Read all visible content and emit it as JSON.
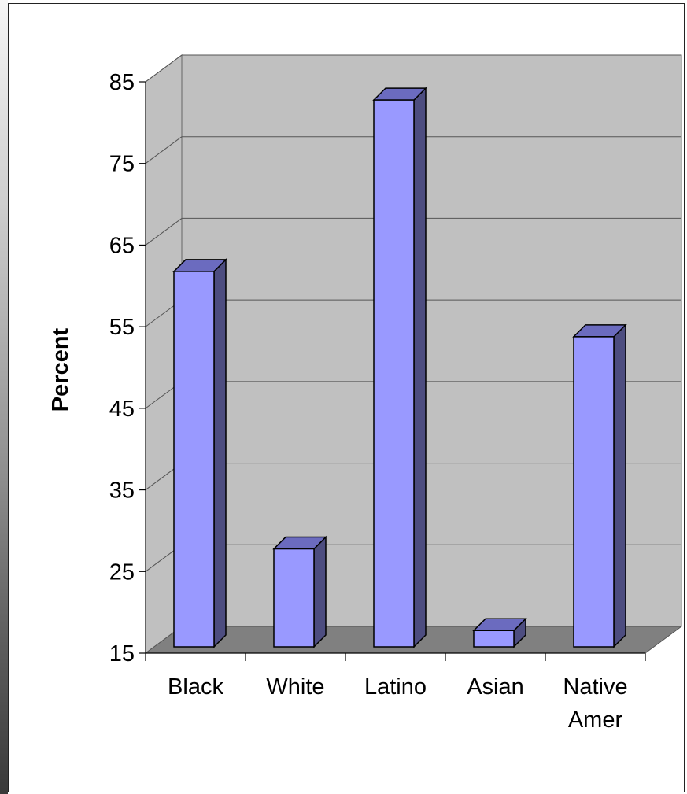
{
  "chart_data": {
    "type": "bar",
    "title": "",
    "xlabel": "",
    "ylabel": "Percent",
    "categories": [
      "Black",
      "White",
      "Latino",
      "Asian",
      "Native Amer"
    ],
    "category_label_lines": [
      [
        "Black"
      ],
      [
        "White"
      ],
      [
        "Latino"
      ],
      [
        "Asian"
      ],
      [
        "Native",
        "Amer"
      ]
    ],
    "values": [
      61,
      27,
      82,
      17,
      53
    ],
    "ylim": [
      15,
      85
    ],
    "yticks": [
      15,
      25,
      35,
      45,
      55,
      65,
      75,
      85
    ],
    "grid": true,
    "legend": "none",
    "style": "3d",
    "colors": {
      "bar_front": "#9999ff",
      "bar_top": "#6b6bbf",
      "bar_side": "#4d4d80",
      "wall": "#c0c0c0",
      "floor": "#808080",
      "outline": "#000000"
    }
  }
}
